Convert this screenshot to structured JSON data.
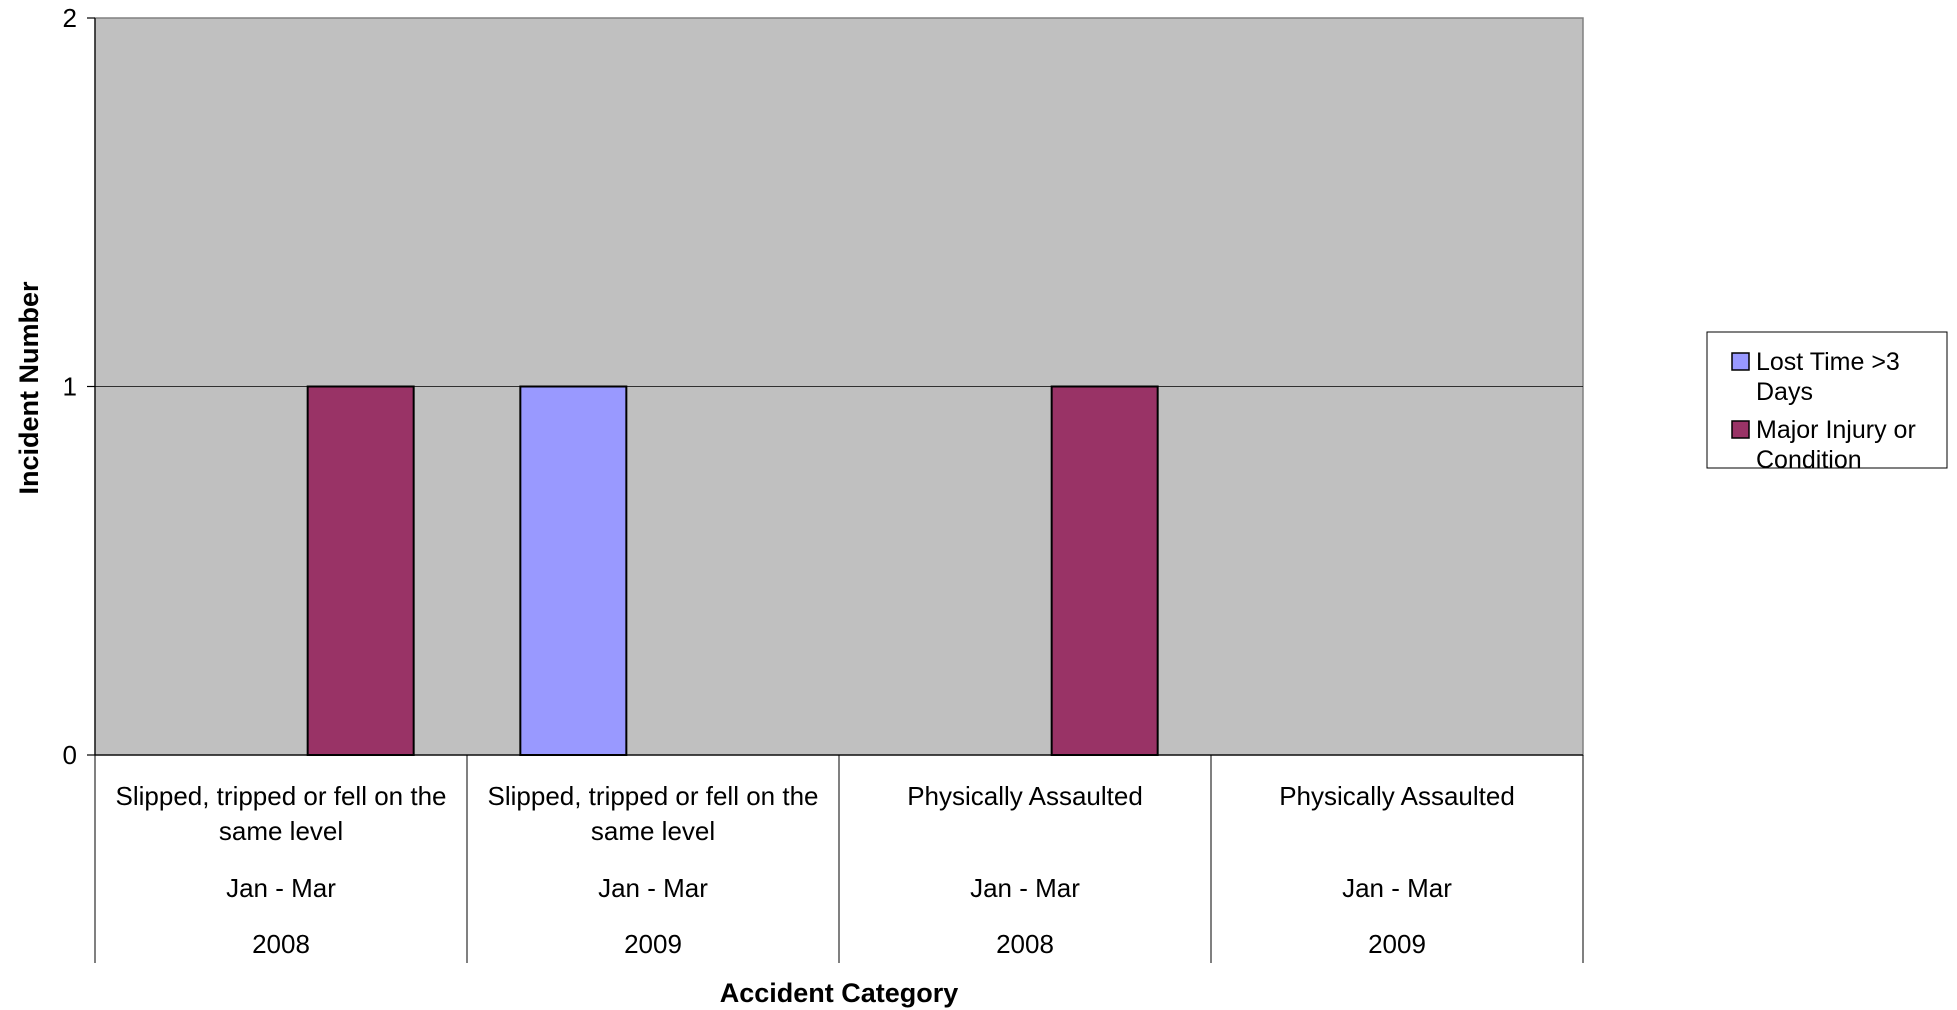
{
  "chart_data": {
    "type": "bar",
    "ylabel": "Incident Number",
    "xlabel": "Accident Category",
    "ylim": [
      0,
      2
    ],
    "yticks": [
      "0",
      "1",
      "2"
    ],
    "grid": true,
    "legend_position": "right",
    "categories": [
      {
        "category": [
          "Slipped, tripped or fell on the",
          "same level"
        ],
        "period": "Jan - Mar",
        "year": "2008"
      },
      {
        "category": [
          "Slipped, tripped or fell on the",
          "same level"
        ],
        "period": "Jan - Mar",
        "year": "2009"
      },
      {
        "category": [
          "Physically Assaulted"
        ],
        "period": "Jan - Mar",
        "year": "2008"
      },
      {
        "category": [
          "Physically Assaulted"
        ],
        "period": "Jan - Mar",
        "year": "2009"
      }
    ],
    "series": [
      {
        "name": "Lost Time >3 Days",
        "legend_lines": [
          "Lost Time >3",
          "Days"
        ],
        "color": "#9999FF",
        "values": [
          0,
          1,
          0,
          0
        ]
      },
      {
        "name": "Major Injury or Condition",
        "legend_lines": [
          "Major Injury or",
          "Condition"
        ],
        "color": "#993366",
        "values": [
          1,
          0,
          1,
          0
        ]
      }
    ],
    "plot_background": "#C0C0C0"
  }
}
